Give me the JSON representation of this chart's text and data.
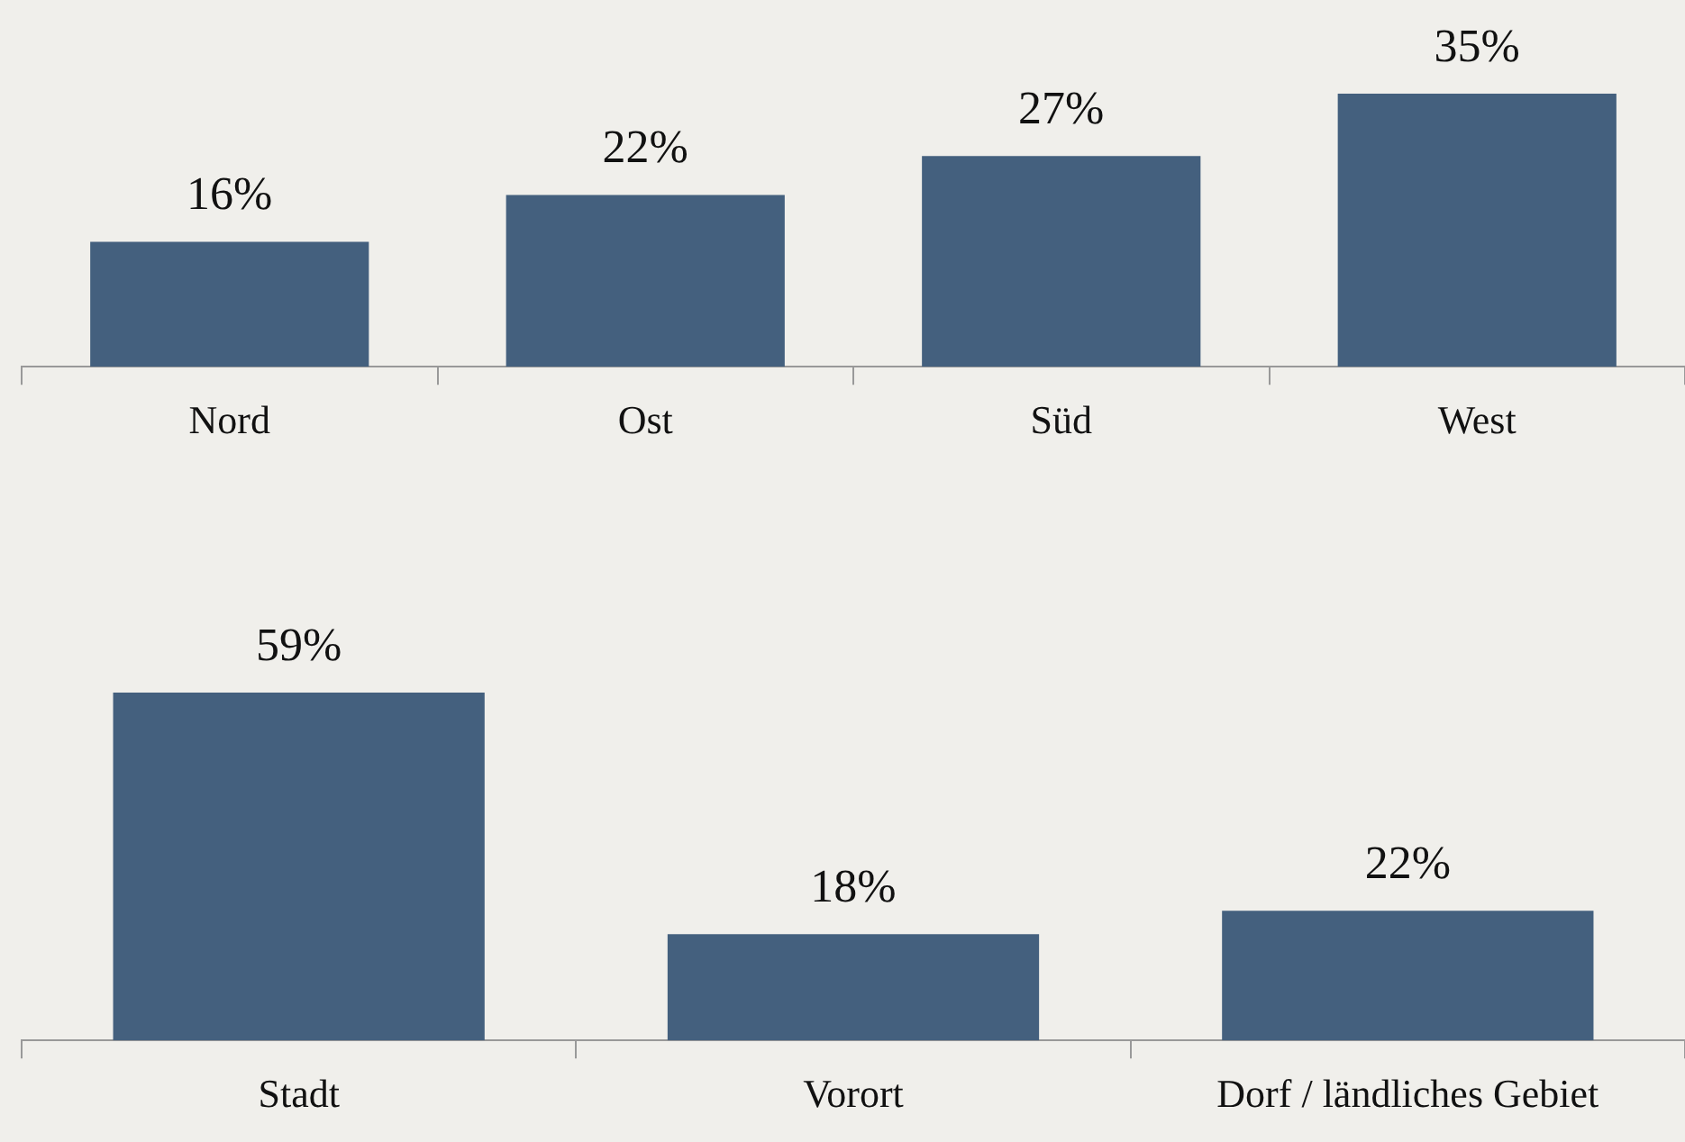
{
  "chart_data": [
    {
      "type": "bar",
      "categories": [
        "Nord",
        "Ost",
        "Süd",
        "West"
      ],
      "values": [
        16,
        22,
        27,
        35
      ],
      "value_labels": [
        "16%",
        "22%",
        "27%",
        "35%"
      ],
      "color": "#44607e",
      "grid": false,
      "tick_labels": "x"
    },
    {
      "type": "bar",
      "categories": [
        "Stadt",
        "Vorort",
        "Dorf / ländliches Gebiet"
      ],
      "values": [
        59,
        18,
        22
      ],
      "value_labels": [
        "59%",
        "18%",
        "22%"
      ],
      "color": "#44607e",
      "grid": false,
      "tick_labels": "x"
    }
  ]
}
